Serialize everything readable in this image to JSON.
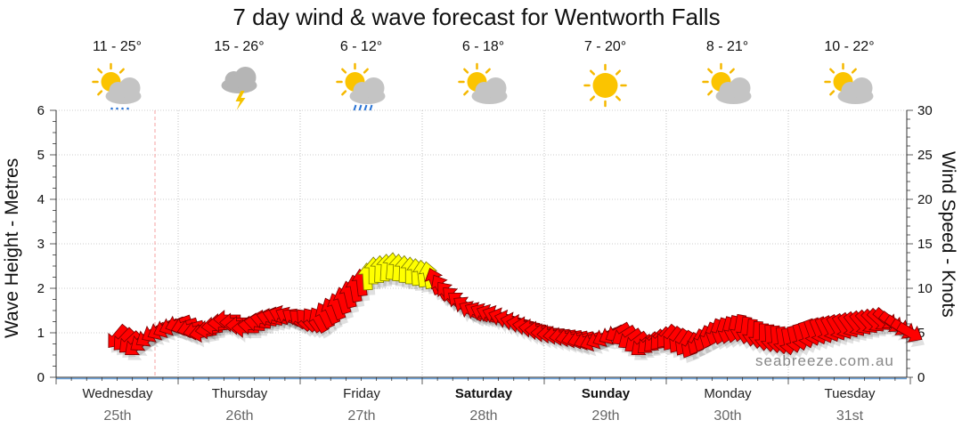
{
  "chart_data": {
    "type": "line",
    "title": "7 day wind & wave forecast for Wentworth Falls",
    "ylabel_left": "Wave Height - Metres",
    "ylabel_right": "Wind Speed - Knots",
    "ylim_left": [
      0,
      6
    ],
    "ylim_right": [
      0,
      30
    ],
    "yticks_left": [
      "0",
      "1",
      "2",
      "3",
      "4",
      "5",
      "6"
    ],
    "yticks_right": [
      "0",
      "5",
      "10",
      "15",
      "20",
      "25",
      "30"
    ],
    "grid": true,
    "days": [
      {
        "day": "Wednesday",
        "date": "25th",
        "temp": "11 - 25°",
        "icon": "partly-cloudy-drizzle-icon",
        "bold": false
      },
      {
        "day": "Thursday",
        "date": "26th",
        "temp": "15 - 26°",
        "icon": "storm-cloud-icon",
        "bold": false
      },
      {
        "day": "Friday",
        "date": "27th",
        "temp": "6 - 12°",
        "icon": "partly-cloudy-rain-icon",
        "bold": false
      },
      {
        "day": "Saturday",
        "date": "28th",
        "temp": "6 - 18°",
        "icon": "partly-cloudy-icon",
        "bold": true
      },
      {
        "day": "Sunday",
        "date": "29th",
        "temp": "7 - 20°",
        "icon": "sunny-icon",
        "bold": true
      },
      {
        "day": "Monday",
        "date": "30th",
        "temp": "8 - 21°",
        "icon": "partly-cloudy-icon",
        "bold": false
      },
      {
        "day": "Tuesday",
        "date": "31st",
        "temp": "10 - 22°",
        "icon": "partly-cloudy-icon",
        "bold": false
      }
    ],
    "series": [
      {
        "name": "Wind",
        "unit": "knots",
        "x_days": [
          0.5,
          0.65,
          0.8,
          1.0,
          1.2,
          1.4,
          1.55,
          1.7,
          1.85,
          2.0,
          2.15,
          2.3,
          2.45,
          2.6,
          2.75,
          2.9,
          3.05,
          3.2,
          3.4,
          3.6,
          3.8,
          4.0,
          4.2,
          4.4,
          4.6,
          4.8,
          5.0,
          5.2,
          5.4,
          5.6,
          5.8,
          6.0,
          6.2,
          6.4,
          6.6,
          6.8,
          7.0
        ],
        "values": [
          4.5,
          3.5,
          5.0,
          6.0,
          5.0,
          6.5,
          5.5,
          6.5,
          7.0,
          6.5,
          6.5,
          8.0,
          10.0,
          12.0,
          12.5,
          12.0,
          11.5,
          9.5,
          7.5,
          7.0,
          6.0,
          5.0,
          4.5,
          4.0,
          5.0,
          3.5,
          4.5,
          3.5,
          5.0,
          5.5,
          4.5,
          4.0,
          5.0,
          5.5,
          6.0,
          6.5,
          5.0
        ],
        "direction_deg": [
          130,
          140,
          150,
          160,
          170,
          180,
          180,
          190,
          200,
          220,
          240,
          250,
          260,
          270,
          275,
          270,
          260,
          230,
          210,
          200,
          190,
          180,
          170,
          160,
          150,
          140,
          130,
          120,
          110,
          100,
          90,
          80,
          70,
          60,
          50,
          40,
          30
        ],
        "color_low": "#ff0000",
        "color_high": "#ffff00"
      }
    ]
  },
  "colors": {
    "wind_arrow": "#ff0000",
    "wind_arrow_strong": "#ffff00",
    "grid": "#999999",
    "now_line": "#f4a0a0"
  },
  "watermark": "seabreeze.com.au"
}
